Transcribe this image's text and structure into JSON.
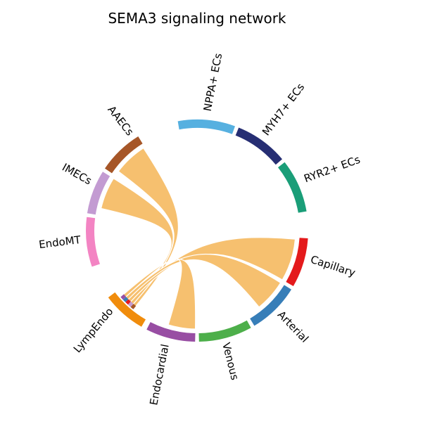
{
  "chart_data": {
    "type": "chord",
    "title": "SEMA3 signaling network",
    "chord_color": "#F6BE6A",
    "sectors": [
      {
        "name": "NPPA+ ECs",
        "color": "#56B0E0"
      },
      {
        "name": "MYH7+ ECs",
        "color": "#262E73"
      },
      {
        "name": "RYR2+ ECs",
        "color": "#1A9E78"
      },
      {
        "name": "Capillary",
        "color": "#E41A1C"
      },
      {
        "name": "Arterial",
        "color": "#377EB8"
      },
      {
        "name": "Venous",
        "color": "#4DAF4A"
      },
      {
        "name": "Endocardial",
        "color": "#984EA3"
      },
      {
        "name": "LympEndo",
        "color": "#F08C0C"
      },
      {
        "name": "EndoMT",
        "color": "#F384C3"
      },
      {
        "name": "IMECs",
        "color": "#C39BD2"
      },
      {
        "name": "AAECs",
        "color": "#A65628"
      }
    ],
    "links": [
      {
        "from": "LympEndo",
        "to": "AAECs"
      },
      {
        "from": "LympEndo",
        "to": "IMECs"
      },
      {
        "from": "LympEndo",
        "to": "Capillary"
      },
      {
        "from": "LympEndo",
        "to": "Arterial"
      },
      {
        "from": "LympEndo",
        "to": "Endocardial"
      }
    ]
  }
}
